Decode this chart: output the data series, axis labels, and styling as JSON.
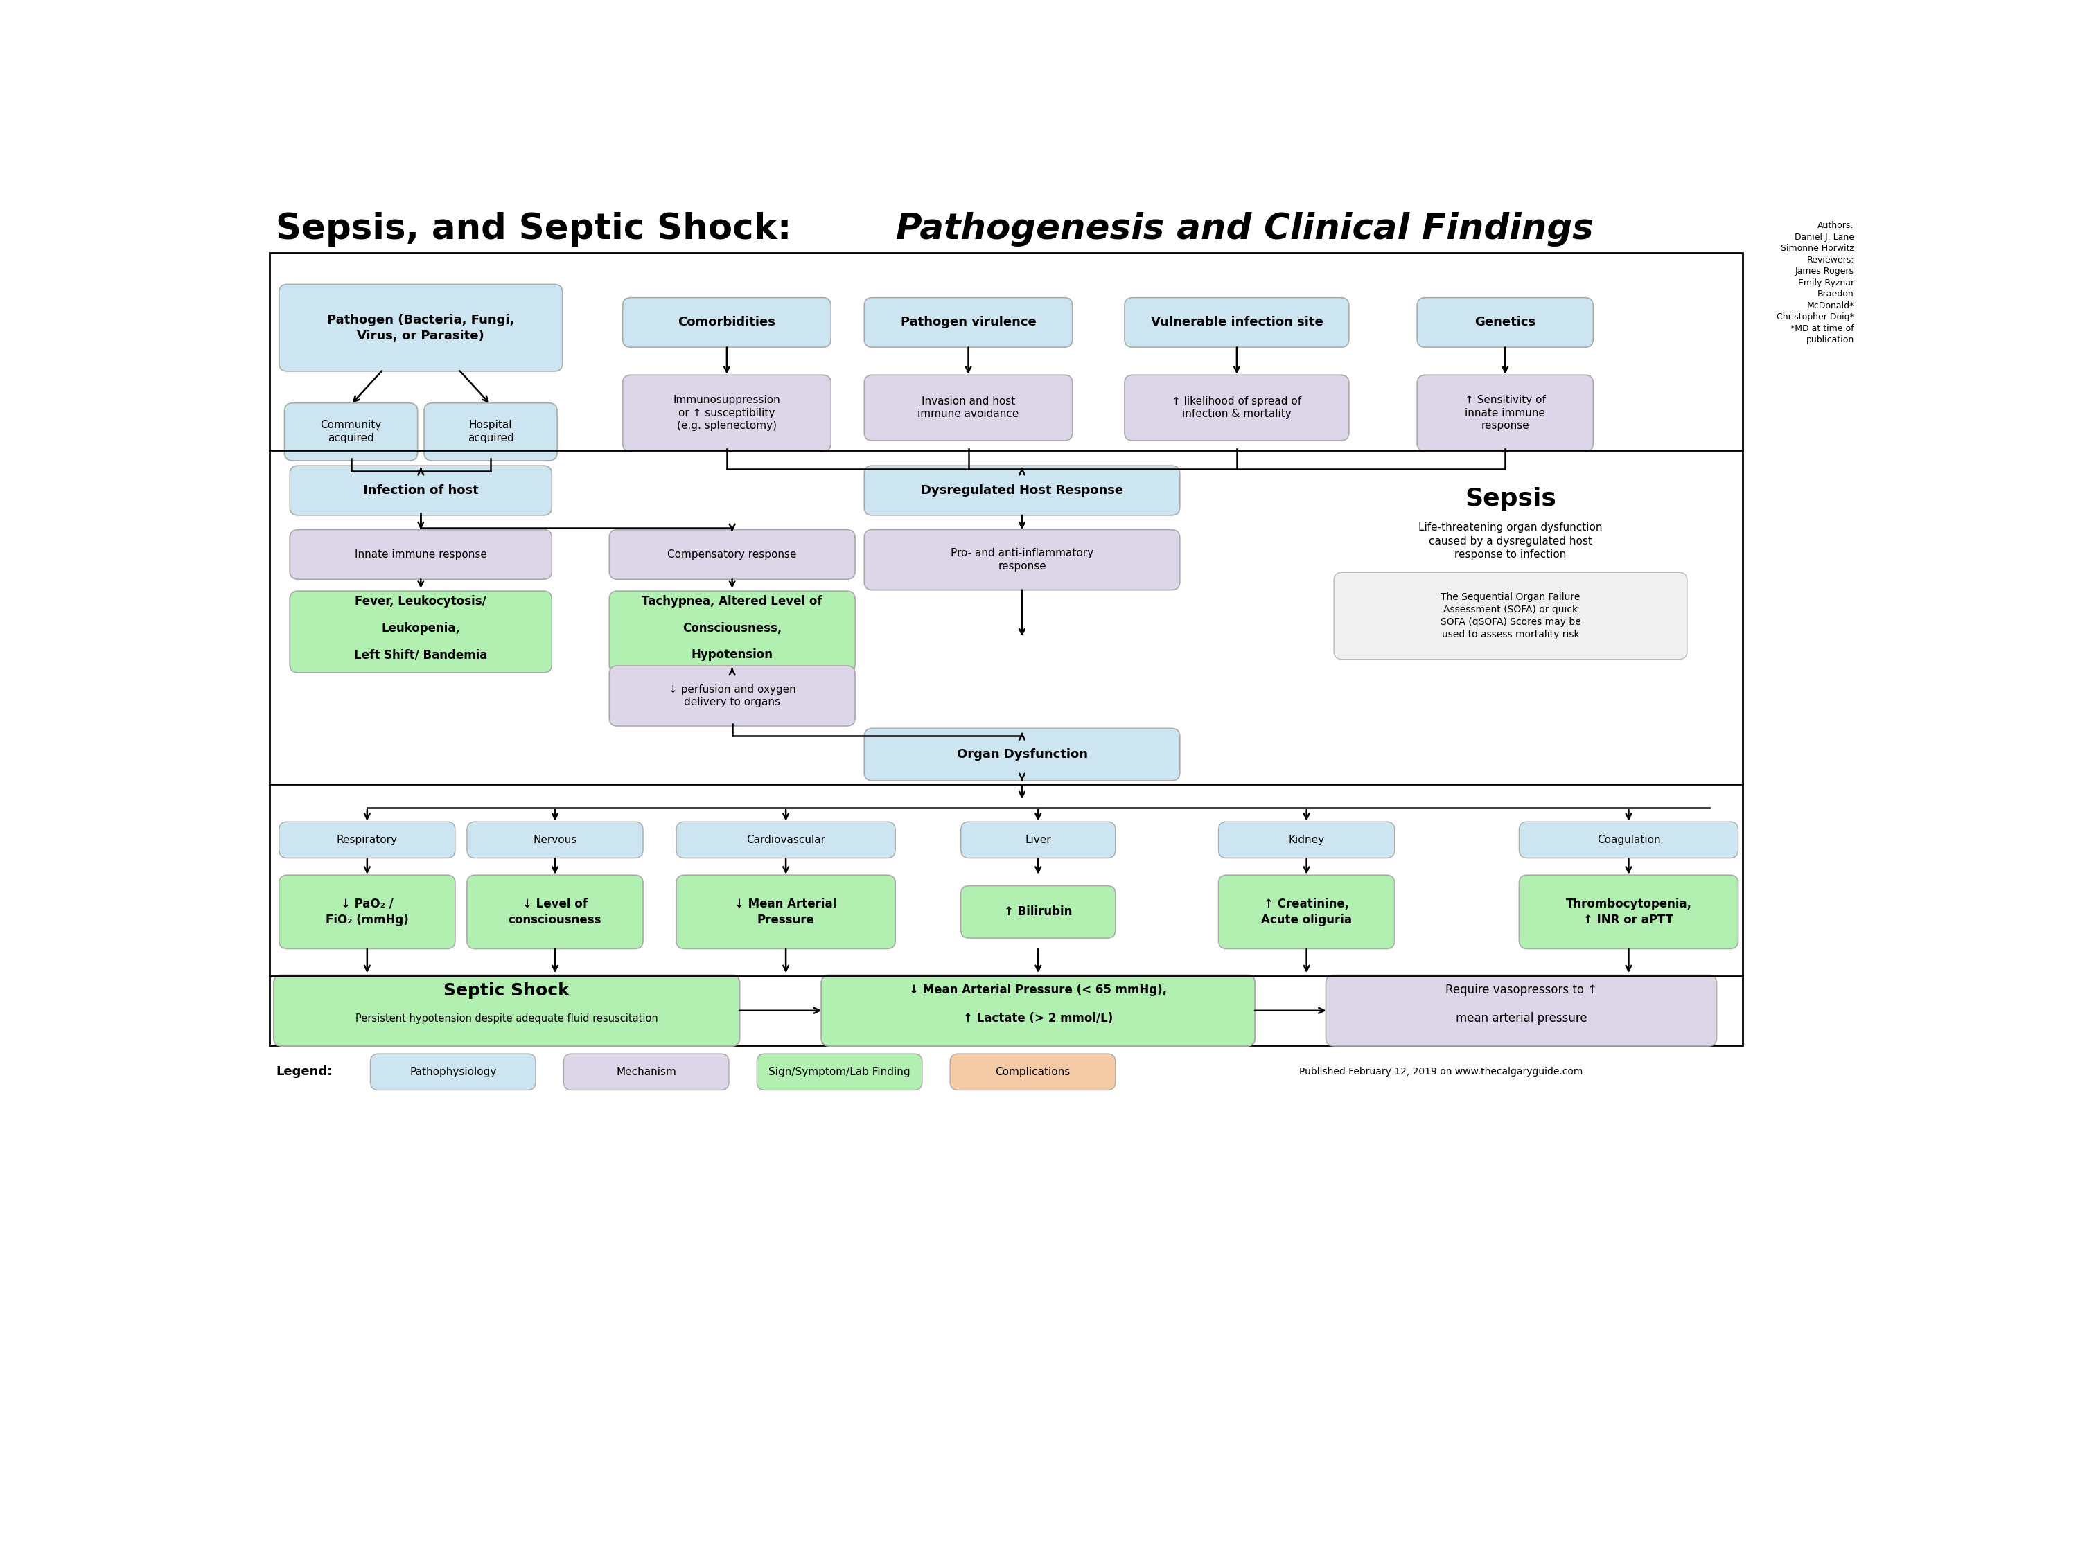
{
  "bg_color": "#ffffff",
  "C_BLUE": "#cce5f0",
  "C_PURPLE": "#ddd5e8",
  "C_GREEN": "#b2f0b2",
  "C_BORDER": "#aaaaaa",
  "C_SOFA": "#f0f0f0",
  "title_bold": "Sepsis, and Septic Shock: ",
  "title_italic": "Pathogenesis and Clinical Findings",
  "authors": "Authors:\nDaniel J. Lane\nSimonne Horwitz\nReviewers:\nJames Rogers\nEmily Ryznar\nBraedon\nMcDonald*\nChristopher Doig*\n*MD at time of\npublication",
  "legend_items": [
    {
      "label": "Pathophysiology",
      "color": "#cce5f0"
    },
    {
      "label": "Mechanism",
      "color": "#ddd5e8"
    },
    {
      "label": "Sign/Symptom/Lab Finding",
      "color": "#b2f0b2"
    },
    {
      "label": "Complications",
      "color": "#f5cba7"
    }
  ],
  "footer": "Published February 12, 2019 on www.thecalgaryguide.com"
}
